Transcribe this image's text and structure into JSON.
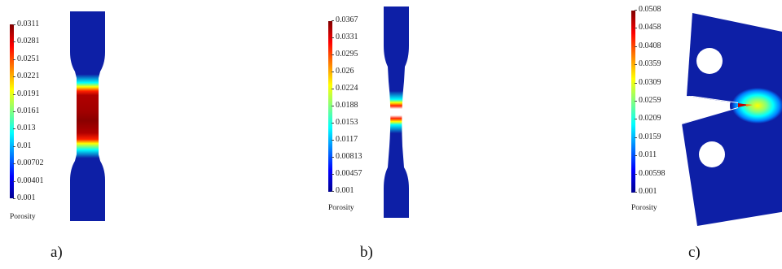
{
  "colormap": [
    "#00008f",
    "#0000ff",
    "#0080ff",
    "#00ffff",
    "#80ff80",
    "#ffff00",
    "#ff8000",
    "#ff0000",
    "#800000"
  ],
  "background_color": "#0d1fa6",
  "panels": [
    {
      "id": "a",
      "caption": "a)",
      "colorbar_title": "Porosity",
      "ticks": [
        "0.0311",
        "0.0281",
        "0.0251",
        "0.0221",
        "0.0191",
        "0.0161",
        "0.013",
        "0.01",
        "0.00702",
        "0.00401",
        "0.001"
      ],
      "range": [
        0.001,
        0.0311
      ]
    },
    {
      "id": "b",
      "caption": "b)",
      "colorbar_title": "Porosity",
      "ticks": [
        "0.0367",
        "0.0331",
        "0.0295",
        "0.026",
        "0.0224",
        "0.0188",
        "0.0153",
        "0.0117",
        "0.00813",
        "0.00457",
        "0.001"
      ],
      "range": [
        0.001,
        0.0367
      ]
    },
    {
      "id": "c",
      "caption": "c)",
      "colorbar_title": "Porosity",
      "ticks": [
        "0.0508",
        "0.0458",
        "0.0408",
        "0.0359",
        "0.0309",
        "0.0259",
        "0.0209",
        "0.0159",
        "0.011",
        "0.00598",
        "0.001"
      ],
      "range": [
        0.001,
        0.0508
      ]
    }
  ]
}
